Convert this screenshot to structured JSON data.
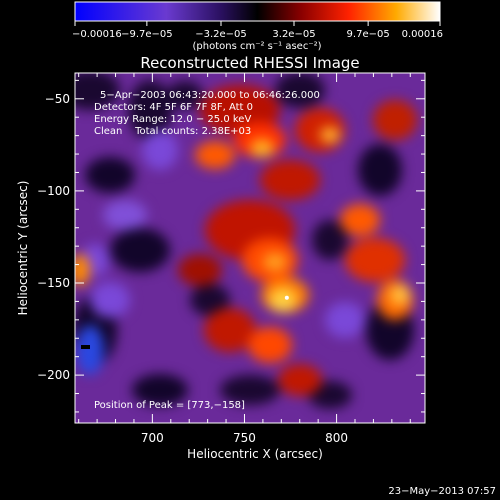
{
  "chart_data": {
    "type": "heatmap",
    "title": "Reconstructed RHESSI Image",
    "xlabel": "Heliocentric X (arcsec)",
    "ylabel": "Heliocentric Y (arcsec)",
    "xlim": [
      658,
      848
    ],
    "ylim": [
      -226,
      -36
    ],
    "x_ticks": [
      {
        "value": 700,
        "label": "700"
      },
      {
        "value": 750,
        "label": "750"
      },
      {
        "value": 800,
        "label": "800"
      }
    ],
    "y_ticks": [
      {
        "value": -50,
        "label": "−50"
      },
      {
        "value": -100,
        "label": "−100"
      },
      {
        "value": -150,
        "label": "−150"
      },
      {
        "value": -200,
        "label": "−200"
      }
    ],
    "colorbar": {
      "min": -0.00016,
      "max": 0.00016,
      "ticks": [
        {
          "value": -0.00016,
          "label": "−0.00016"
        },
        {
          "value": -9.7e-05,
          "label": "−9.7e−05"
        },
        {
          "value": -3.2e-05,
          "label": "−3.2e−05"
        },
        {
          "value": 3.2e-05,
          "label": "3.2e−05"
        },
        {
          "value": 9.7e-05,
          "label": "9.7e−05"
        },
        {
          "value": 0.00016,
          "label": "0.00016"
        }
      ],
      "unit_label": "(photons cm⁻² s⁻¹ asec⁻²)"
    },
    "info_lines": [
      "5−Apr−2003 06:43:20.000 to 06:46:26.000",
      "Detectors: 4F 5F 6F 7F 8F, Att 0",
      "Energy Range: 12.0 − 25.0 keV",
      "Clean    Total counts: 2.38E+03"
    ],
    "peak_label": "Position of Peak = [773,−158]",
    "peak": {
      "x": 773,
      "y": -158
    },
    "timestamp": "23−May−2013 07:57"
  }
}
